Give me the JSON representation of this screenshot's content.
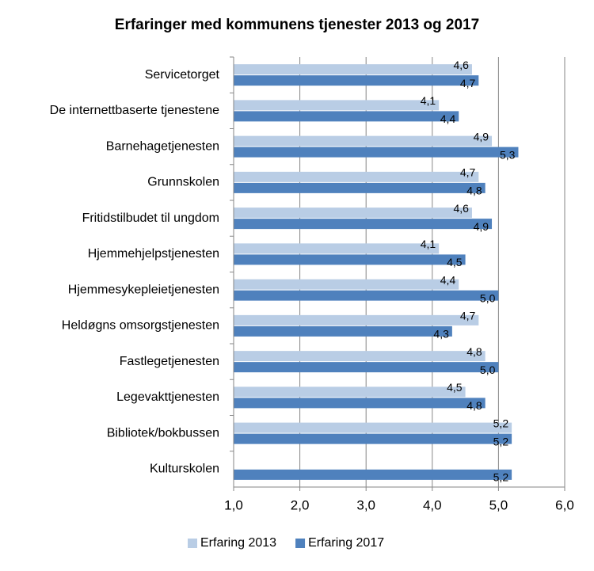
{
  "chart_data": {
    "type": "hbar",
    "title": "Erfaringer med kommunens tjenester 2013 og 2017",
    "categories": [
      "Servicetorget",
      "De internettbaserte tjenestene",
      "Barnehagetjenesten",
      "Grunnskolen",
      "Fritidstilbudet til ungdom",
      "Hjemmehjelpstjenesten",
      "Hjemmesykepleietjenesten",
      "Heldøgns omsorgstjenesten",
      "Fastlegetjenesten",
      "Legevakttjenesten",
      "Bibliotek/bokbussen",
      "Kulturskolen"
    ],
    "series": [
      {
        "name": "Erfaring 2013",
        "color": "#b9cde5",
        "values": [
          4.6,
          4.1,
          4.9,
          4.7,
          4.6,
          4.1,
          4.4,
          4.7,
          4.8,
          4.5,
          5.2,
          null
        ],
        "value_labels": [
          "4,6",
          "4,1",
          "4,9",
          "4,7",
          "4,6",
          "4,1",
          "4,4",
          "4,7",
          "4,8",
          "4,5",
          "5,2",
          null
        ]
      },
      {
        "name": "Erfaring 2017",
        "color": "#4f81bd",
        "values": [
          4.7,
          4.4,
          5.3,
          4.8,
          4.9,
          4.5,
          5.0,
          4.3,
          5.0,
          4.8,
          5.2,
          5.2
        ],
        "value_labels": [
          "4,7",
          "4,4",
          "5,3",
          "4,8",
          "4,9",
          "4,5",
          "5,0",
          "4,3",
          "5,0",
          "4,8",
          "5,2",
          "5,2"
        ]
      }
    ],
    "xlim": [
      1,
      6
    ],
    "xticks": [
      {
        "value": 1,
        "label": "1,0"
      },
      {
        "value": 2,
        "label": "2,0"
      },
      {
        "value": 3,
        "label": "3,0"
      },
      {
        "value": 4,
        "label": "4,0"
      },
      {
        "value": 5,
        "label": "5,0"
      },
      {
        "value": 6,
        "label": "6,0"
      }
    ],
    "grid": true,
    "legend": "bottom"
  }
}
